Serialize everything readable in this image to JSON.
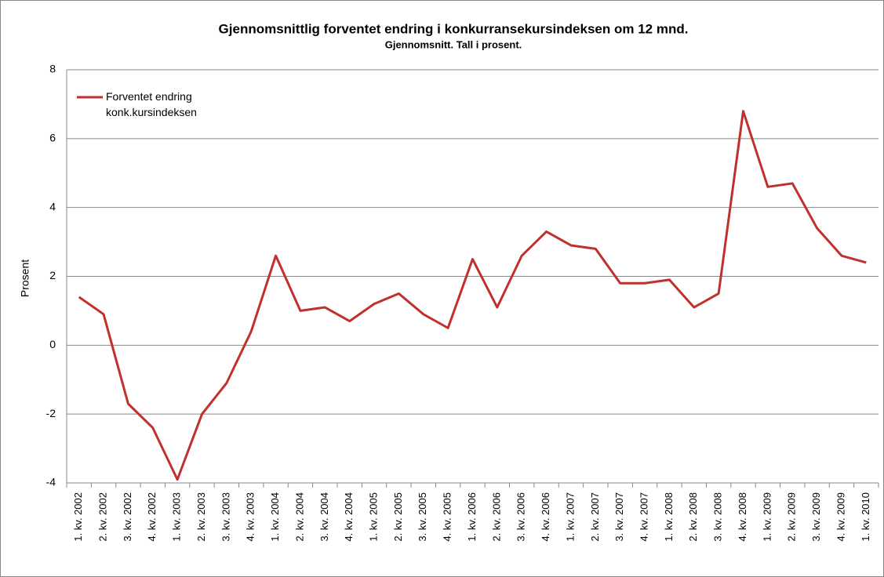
{
  "chart_data": {
    "type": "line",
    "title": "Gjennomsnittlig forventet endring i konkurransekursindeksen om 12 mnd.",
    "subtitle": "Gjennomsnitt. Tall i prosent.",
    "y_label": "Prosent",
    "categories": [
      "1. kv. 2002",
      "2. kv. 2002",
      "3. kv. 2002",
      "4. kv. 2002",
      "1. kv. 2003",
      "2. kv. 2003",
      "3. kv. 2003",
      "4. kv. 2003",
      "1. kv. 2004",
      "2. kv. 2004",
      "3. kv. 2004",
      "4. kv. 2004",
      "1. kv. 2005",
      "2. kv. 2005",
      "3. kv. 2005",
      "4. kv. 2005",
      "1. kv. 2006",
      "2. kv. 2006",
      "3. kv. 2006",
      "4. kv. 2006",
      "1. kv. 2007",
      "2. kv. 2007",
      "3. kv. 2007",
      "4. kv. 2007",
      "1. kv. 2008",
      "2. kv. 2008",
      "3. kv. 2008",
      "4. kv. 2008",
      "1. kv. 2009",
      "2. kv. 2009",
      "3. kv. 2009",
      "4. kv. 2009",
      "1. kv. 2010"
    ],
    "series": [
      {
        "name": "Forventet endring konk.kursindeksen",
        "color": "#c0312e",
        "values": [
          1.4,
          0.9,
          -1.7,
          -2.4,
          -3.9,
          -2.0,
          -1.1,
          0.4,
          2.6,
          1.0,
          1.1,
          0.7,
          1.2,
          1.5,
          0.9,
          0.5,
          2.5,
          1.1,
          2.6,
          3.3,
          2.9,
          2.8,
          1.8,
          1.8,
          1.9,
          1.1,
          1.5,
          6.8,
          4.6,
          4.7,
          3.4,
          2.6,
          2.4
        ]
      }
    ],
    "ylim": [
      -4,
      8
    ],
    "yticks": [
      -4,
      -2,
      0,
      2,
      4,
      6,
      8
    ],
    "grid": true,
    "legend": "top-left"
  }
}
